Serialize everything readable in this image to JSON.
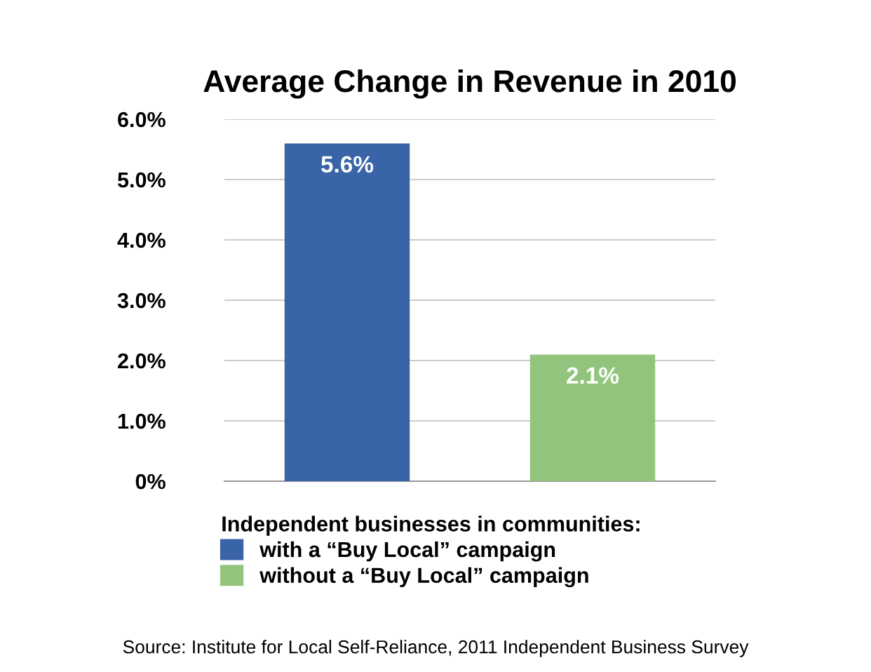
{
  "chart_data": {
    "type": "bar",
    "title": "Average Change in Revenue in 2010",
    "categories": [
      null,
      null
    ],
    "series": [
      {
        "name": "with a “Buy Local” campaign",
        "color": "#3a64a8",
        "values": [
          5.6,
          null
        ],
        "value_labels": [
          "5.6%",
          null
        ]
      },
      {
        "name": "without a “Buy Local” campaign",
        "color": "#93c47d",
        "values": [
          null,
          2.1
        ],
        "value_labels": [
          null,
          "2.1%"
        ]
      }
    ],
    "ylim": [
      0,
      6
    ],
    "yticks": [
      {
        "value": 0,
        "label": "0%"
      },
      {
        "value": 1,
        "label": "1.0%"
      },
      {
        "value": 2,
        "label": "2.0%"
      },
      {
        "value": 3,
        "label": "3.0%"
      },
      {
        "value": 4,
        "label": "4.0%"
      },
      {
        "value": 5,
        "label": "5.0%"
      },
      {
        "value": 6,
        "label": "6.0%"
      }
    ],
    "grid": "y",
    "legend": "bottom",
    "legend_title": "Independent businesses in communities:",
    "annotations": [
      "Source: Institute for Local Self-Reliance, 2011 Independent Business Survey"
    ]
  }
}
